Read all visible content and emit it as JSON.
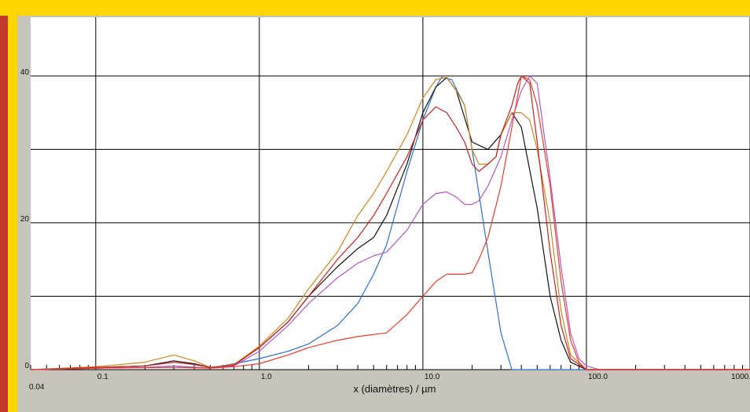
{
  "colors": {
    "page_background": "#ffd700",
    "left_strip": "#c0392b",
    "frame": "#c8c3bb",
    "plot_background": "#ffffff",
    "grid": "#000000"
  },
  "chart_data": {
    "type": "line",
    "xlabel": "x (diamètres) / µm",
    "ylabel": "",
    "title": "",
    "x_scale": "log",
    "xlim": [
      0.04,
      1000
    ],
    "ylim": [
      0,
      48
    ],
    "grid": true,
    "x_ticks": [
      {
        "value": 0.04,
        "label": "0.04"
      },
      {
        "value": 0.1,
        "label": "0.1"
      },
      {
        "value": 1,
        "label": "1.0"
      },
      {
        "value": 10,
        "label": "10.0"
      },
      {
        "value": 100,
        "label": "100.0"
      },
      {
        "value": 1000,
        "label": "1000."
      }
    ],
    "y_ticks": [
      {
        "value": 0,
        "label": "0"
      },
      {
        "value": 20,
        "label": "20"
      },
      {
        "value": 40,
        "label": "40"
      }
    ],
    "y_gridlines": [
      10,
      20,
      30,
      40
    ],
    "series": [
      {
        "color": "#2a6fd6",
        "points": [
          [
            0.04,
            0
          ],
          [
            0.1,
            0.2
          ],
          [
            0.2,
            0.3
          ],
          [
            0.3,
            0.5
          ],
          [
            0.5,
            0.2
          ],
          [
            0.7,
            0.8
          ],
          [
            1,
            1.5
          ],
          [
            1.5,
            2.5
          ],
          [
            2,
            3.5
          ],
          [
            3,
            6
          ],
          [
            4,
            9
          ],
          [
            5,
            13
          ],
          [
            6,
            17
          ],
          [
            8,
            27
          ],
          [
            10,
            34
          ],
          [
            12,
            38.5
          ],
          [
            13,
            39.8
          ],
          [
            15,
            39.5
          ],
          [
            18,
            36
          ],
          [
            20,
            30
          ],
          [
            25,
            16
          ],
          [
            30,
            5
          ],
          [
            35,
            0
          ],
          [
            100,
            0
          ],
          [
            1000,
            0
          ]
        ]
      },
      {
        "color": "#111111",
        "points": [
          [
            0.04,
            0
          ],
          [
            0.1,
            0.3
          ],
          [
            0.2,
            0.5
          ],
          [
            0.3,
            1.2
          ],
          [
            0.4,
            0.8
          ],
          [
            0.5,
            0.3
          ],
          [
            0.7,
            0.6
          ],
          [
            1,
            3
          ],
          [
            1.5,
            6.5
          ],
          [
            2,
            10
          ],
          [
            3,
            14
          ],
          [
            4,
            16.5
          ],
          [
            5,
            18
          ],
          [
            6,
            21
          ],
          [
            8,
            28
          ],
          [
            10,
            35
          ],
          [
            12,
            38.5
          ],
          [
            14,
            39.8
          ],
          [
            16,
            38
          ],
          [
            20,
            31
          ],
          [
            25,
            30
          ],
          [
            30,
            32
          ],
          [
            35,
            35
          ],
          [
            40,
            33
          ],
          [
            50,
            22
          ],
          [
            60,
            10
          ],
          [
            70,
            4
          ],
          [
            80,
            1
          ],
          [
            100,
            0
          ],
          [
            1000,
            0
          ]
        ]
      },
      {
        "color": "#d4861c",
        "points": [
          [
            0.04,
            0
          ],
          [
            0.1,
            0.4
          ],
          [
            0.2,
            1
          ],
          [
            0.3,
            2
          ],
          [
            0.4,
            1.2
          ],
          [
            0.5,
            0.3
          ],
          [
            0.7,
            0.7
          ],
          [
            1,
            3.2
          ],
          [
            1.5,
            7
          ],
          [
            2,
            11
          ],
          [
            3,
            16
          ],
          [
            4,
            21
          ],
          [
            5,
            24
          ],
          [
            6,
            27
          ],
          [
            8,
            32
          ],
          [
            10,
            37
          ],
          [
            12,
            39.5
          ],
          [
            14,
            39.8
          ],
          [
            16,
            38
          ],
          [
            18,
            36
          ],
          [
            20,
            30
          ],
          [
            22,
            28
          ],
          [
            25,
            28
          ],
          [
            28,
            29
          ],
          [
            30,
            32
          ],
          [
            35,
            35
          ],
          [
            40,
            35
          ],
          [
            45,
            34
          ],
          [
            50,
            30
          ],
          [
            60,
            20
          ],
          [
            70,
            8
          ],
          [
            80,
            2
          ],
          [
            100,
            0
          ],
          [
            1000,
            0
          ]
        ]
      },
      {
        "color": "#cc1f1f",
        "points": [
          [
            0.04,
            0
          ],
          [
            0.1,
            0.3
          ],
          [
            0.2,
            0.5
          ],
          [
            0.3,
            1
          ],
          [
            0.4,
            0.7
          ],
          [
            0.5,
            0.3
          ],
          [
            0.7,
            0.6
          ],
          [
            1,
            3
          ],
          [
            1.5,
            6.5
          ],
          [
            2,
            10
          ],
          [
            3,
            15
          ],
          [
            4,
            18
          ],
          [
            5,
            21
          ],
          [
            6,
            24
          ],
          [
            8,
            29
          ],
          [
            10,
            34
          ],
          [
            12,
            35.8
          ],
          [
            14,
            35
          ],
          [
            16,
            33
          ],
          [
            18,
            31
          ],
          [
            20,
            28
          ],
          [
            22,
            27
          ],
          [
            25,
            28
          ],
          [
            28,
            29
          ],
          [
            30,
            32
          ],
          [
            35,
            36
          ],
          [
            38,
            39
          ],
          [
            40,
            40
          ],
          [
            45,
            39
          ],
          [
            50,
            31
          ],
          [
            60,
            16
          ],
          [
            70,
            6
          ],
          [
            80,
            1.5
          ],
          [
            100,
            0
          ],
          [
            1000,
            0
          ]
        ]
      },
      {
        "color": "#b259c4",
        "points": [
          [
            0.04,
            0
          ],
          [
            0.1,
            0.2
          ],
          [
            0.2,
            0.3
          ],
          [
            0.3,
            0.5
          ],
          [
            0.5,
            0.2
          ],
          [
            0.7,
            0.5
          ],
          [
            1,
            2.5
          ],
          [
            1.5,
            6
          ],
          [
            2,
            9
          ],
          [
            3,
            12.5
          ],
          [
            4,
            14.5
          ],
          [
            5,
            15.5
          ],
          [
            6,
            16
          ],
          [
            8,
            19
          ],
          [
            10,
            22.5
          ],
          [
            12,
            24
          ],
          [
            14,
            24.2
          ],
          [
            16,
            23.5
          ],
          [
            18,
            22.5
          ],
          [
            20,
            22.5
          ],
          [
            22,
            23
          ],
          [
            25,
            25
          ],
          [
            30,
            29
          ],
          [
            35,
            34
          ],
          [
            40,
            38
          ],
          [
            45,
            40
          ],
          [
            50,
            39
          ],
          [
            60,
            26
          ],
          [
            70,
            14
          ],
          [
            80,
            5
          ],
          [
            90,
            1.5
          ],
          [
            100,
            0.5
          ],
          [
            120,
            0
          ],
          [
            1000,
            0
          ]
        ]
      },
      {
        "color": "#ee3a2a",
        "points": [
          [
            0.04,
            0
          ],
          [
            0.1,
            0.2
          ],
          [
            0.3,
            0.3
          ],
          [
            0.5,
            0.2
          ],
          [
            0.7,
            0.4
          ],
          [
            1,
            0.8
          ],
          [
            1.5,
            2
          ],
          [
            2,
            3
          ],
          [
            3,
            4
          ],
          [
            4,
            4.5
          ],
          [
            6,
            5
          ],
          [
            8,
            7.5
          ],
          [
            10,
            10
          ],
          [
            12,
            12
          ],
          [
            14,
            13
          ],
          [
            16,
            13
          ],
          [
            18,
            13
          ],
          [
            20,
            13.2
          ],
          [
            22,
            15
          ],
          [
            25,
            18
          ],
          [
            30,
            25
          ],
          [
            35,
            33
          ],
          [
            40,
            40
          ],
          [
            45,
            39.5
          ],
          [
            50,
            36
          ],
          [
            60,
            25
          ],
          [
            70,
            12
          ],
          [
            80,
            4
          ],
          [
            90,
            1
          ],
          [
            100,
            0
          ],
          [
            1000,
            0
          ]
        ]
      }
    ]
  }
}
